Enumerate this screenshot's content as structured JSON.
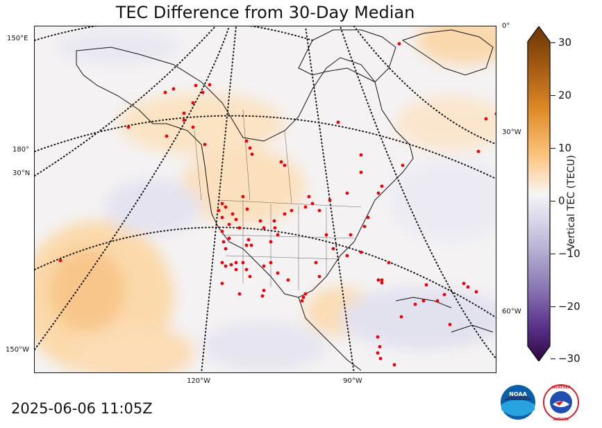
{
  "title": "TEC Difference from 30-Day Median",
  "timestamp": "2025-06-06 11:05Z",
  "colorbar": {
    "label": "Vertical TEC (TECU)",
    "min": -30,
    "max": 30,
    "ticks": [
      "30",
      "20",
      "10",
      "0",
      "−10",
      "−20",
      "−30"
    ],
    "positive_color": "#8b4a0f",
    "neutral_color": "#f5f5f5",
    "negative_color": "#3b0a4f"
  },
  "graticule_labels": {
    "left": [
      "150°E",
      "180°",
      "30°N",
      "150°W"
    ],
    "right": [
      "0°",
      "30°W",
      "60°W"
    ],
    "bottom": [
      "120°W",
      "90°W"
    ]
  },
  "station_marker_color": "#e8000b",
  "logos": {
    "noaa_text": "NOAA",
    "nws_text": "NATIONAL WEATHER SERVICE"
  }
}
